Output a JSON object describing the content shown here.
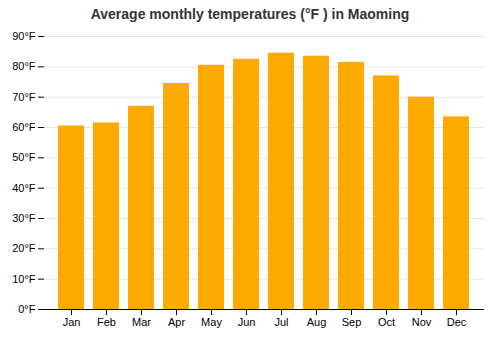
{
  "chart_data": {
    "type": "bar",
    "title": "Average monthly temperatures (°F ) in Maoming",
    "categories": [
      "Jan",
      "Feb",
      "Mar",
      "Apr",
      "May",
      "Jun",
      "Jul",
      "Aug",
      "Sep",
      "Oct",
      "Nov",
      "Dec"
    ],
    "values": [
      60.5,
      61.5,
      67.0,
      74.5,
      80.5,
      82.5,
      84.5,
      83.5,
      81.5,
      77.0,
      70.0,
      63.5
    ],
    "color": "#FFAA00",
    "ylim": [
      0,
      90
    ],
    "yticks": [
      {
        "value": 0,
        "label": "0°F"
      },
      {
        "value": 10,
        "label": "10°F"
      },
      {
        "value": 20,
        "label": "20°F"
      },
      {
        "value": 30,
        "label": "30°F"
      },
      {
        "value": 40,
        "label": "40°F"
      },
      {
        "value": 50,
        "label": "50°F"
      },
      {
        "value": 60,
        "label": "60°F"
      },
      {
        "value": 70,
        "label": "70°F"
      },
      {
        "value": 80,
        "label": "80°F"
      },
      {
        "value": 90,
        "label": "90°F"
      }
    ],
    "grid": true
  }
}
